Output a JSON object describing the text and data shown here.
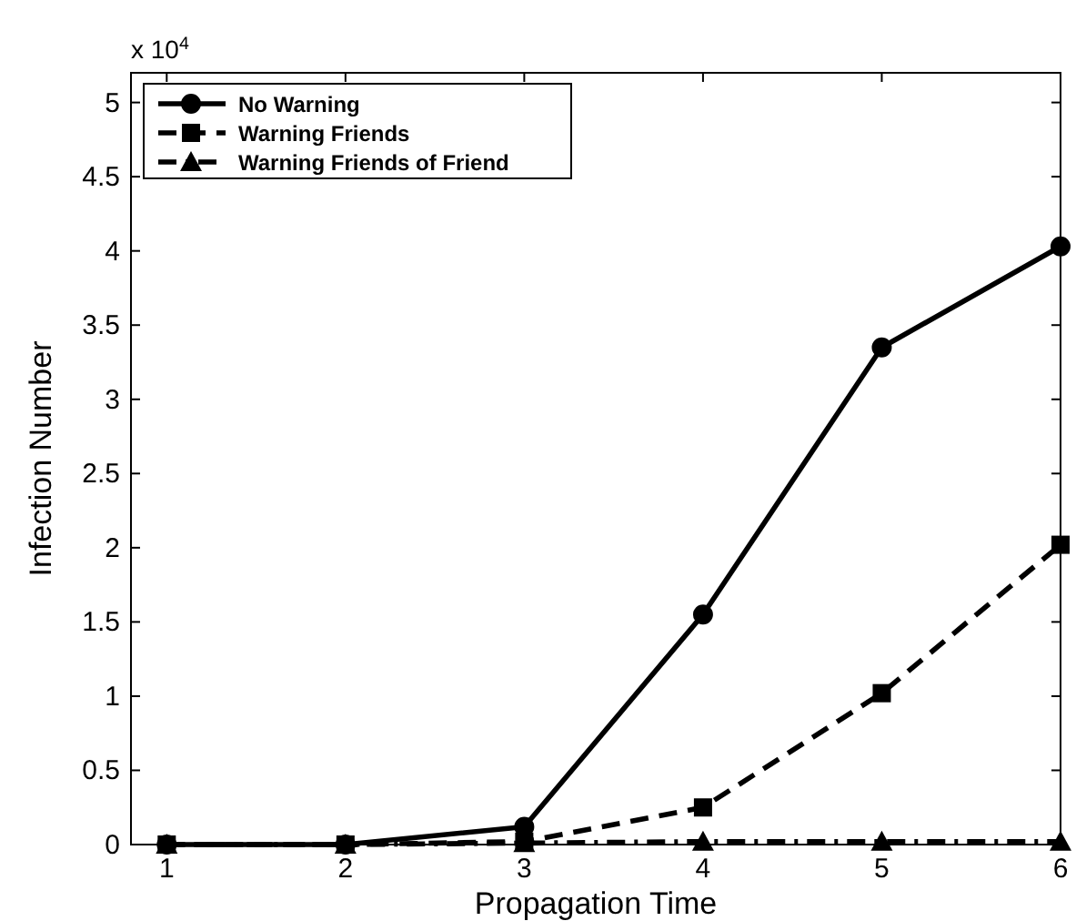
{
  "chart_data": {
    "type": "line",
    "xlabel": "Propagation Time",
    "ylabel": "Infection Number",
    "annotations": [
      "x 10$^{4}$"
    ],
    "x": [
      1,
      2,
      3,
      4,
      5,
      6
    ],
    "xlim": [
      0.8,
      6
    ],
    "xticks": [
      1,
      2,
      3,
      4,
      5,
      6
    ],
    "ylim": [
      0,
      5.2
    ],
    "yticks": [
      0,
      0.5,
      1,
      1.5,
      2,
      2.5,
      3,
      3.5,
      4,
      4.5,
      5
    ],
    "legend": "top left",
    "grid": false,
    "series": [
      {
        "name": "No Warning",
        "color": "#000000",
        "values": [
          0,
          0,
          0.12,
          1.55,
          3.35,
          4.03
        ],
        "marker": "circle",
        "line_style": "solid"
      },
      {
        "name": "Warning Friends",
        "color": "#000000",
        "values": [
          0,
          0,
          0.02,
          0.25,
          1.02,
          2.02
        ],
        "marker": "square",
        "line_style": "dashed"
      },
      {
        "name": "Warning Friends of Friend",
        "color": "#000000",
        "values": [
          0,
          0,
          0.01,
          0.02,
          0.02,
          0.02
        ],
        "marker": "triangle",
        "line_style": "dashdot"
      }
    ]
  }
}
